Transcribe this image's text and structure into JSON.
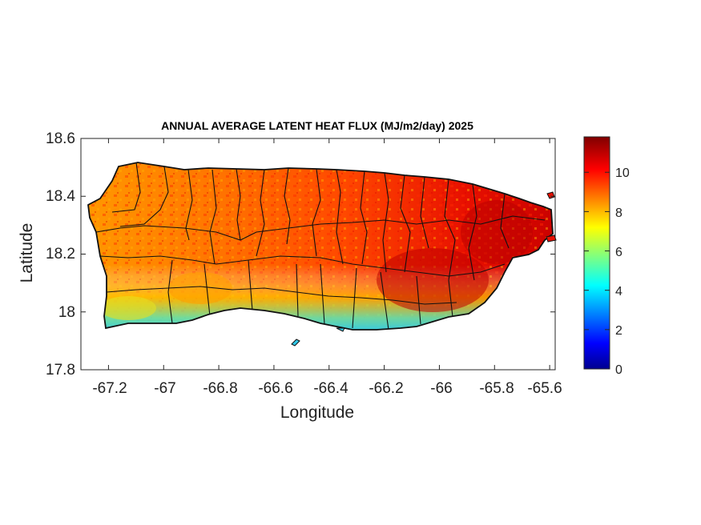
{
  "chart_data": {
    "type": "heatmap",
    "title": "ANNUAL AVERAGE LATENT HEAT FLUX (MJ/m2/day) 2025",
    "xlabel": "Longitude",
    "ylabel": "Latitude",
    "xlim": [
      -67.3,
      -65.58
    ],
    "ylim": [
      17.8,
      18.6
    ],
    "x_ticks": [
      -67.2,
      -67,
      -66.8,
      -66.6,
      -66.4,
      -66.2,
      -66,
      -65.8,
      -65.6
    ],
    "x_tick_labels": [
      "-67.2",
      "-67",
      "-66.8",
      "-66.6",
      "-66.4",
      "-66.2",
      "-66",
      "-65.8",
      "-65.6"
    ],
    "y_ticks": [
      17.8,
      18,
      18.2,
      18.4,
      18.6
    ],
    "y_tick_labels": [
      "17.8",
      "18",
      "18.2",
      "18.4",
      "18.6"
    ],
    "colorbar": {
      "colormap": "jet",
      "clim": [
        0,
        11.8
      ],
      "ticks": [
        0,
        2,
        4,
        6,
        8,
        10
      ],
      "tick_labels": [
        "0",
        "2",
        "4",
        "6",
        "8",
        "10"
      ]
    },
    "region": "Puerto Rico (municipality boundaries)",
    "pattern": [
      {
        "area": "west and central interior",
        "value_range": [
          8,
          9.5
        ]
      },
      {
        "area": "east and southeast",
        "value_range": [
          10,
          11.5
        ]
      },
      {
        "area": "south coast",
        "value_range": [
          4.5,
          6.5
        ]
      }
    ]
  }
}
